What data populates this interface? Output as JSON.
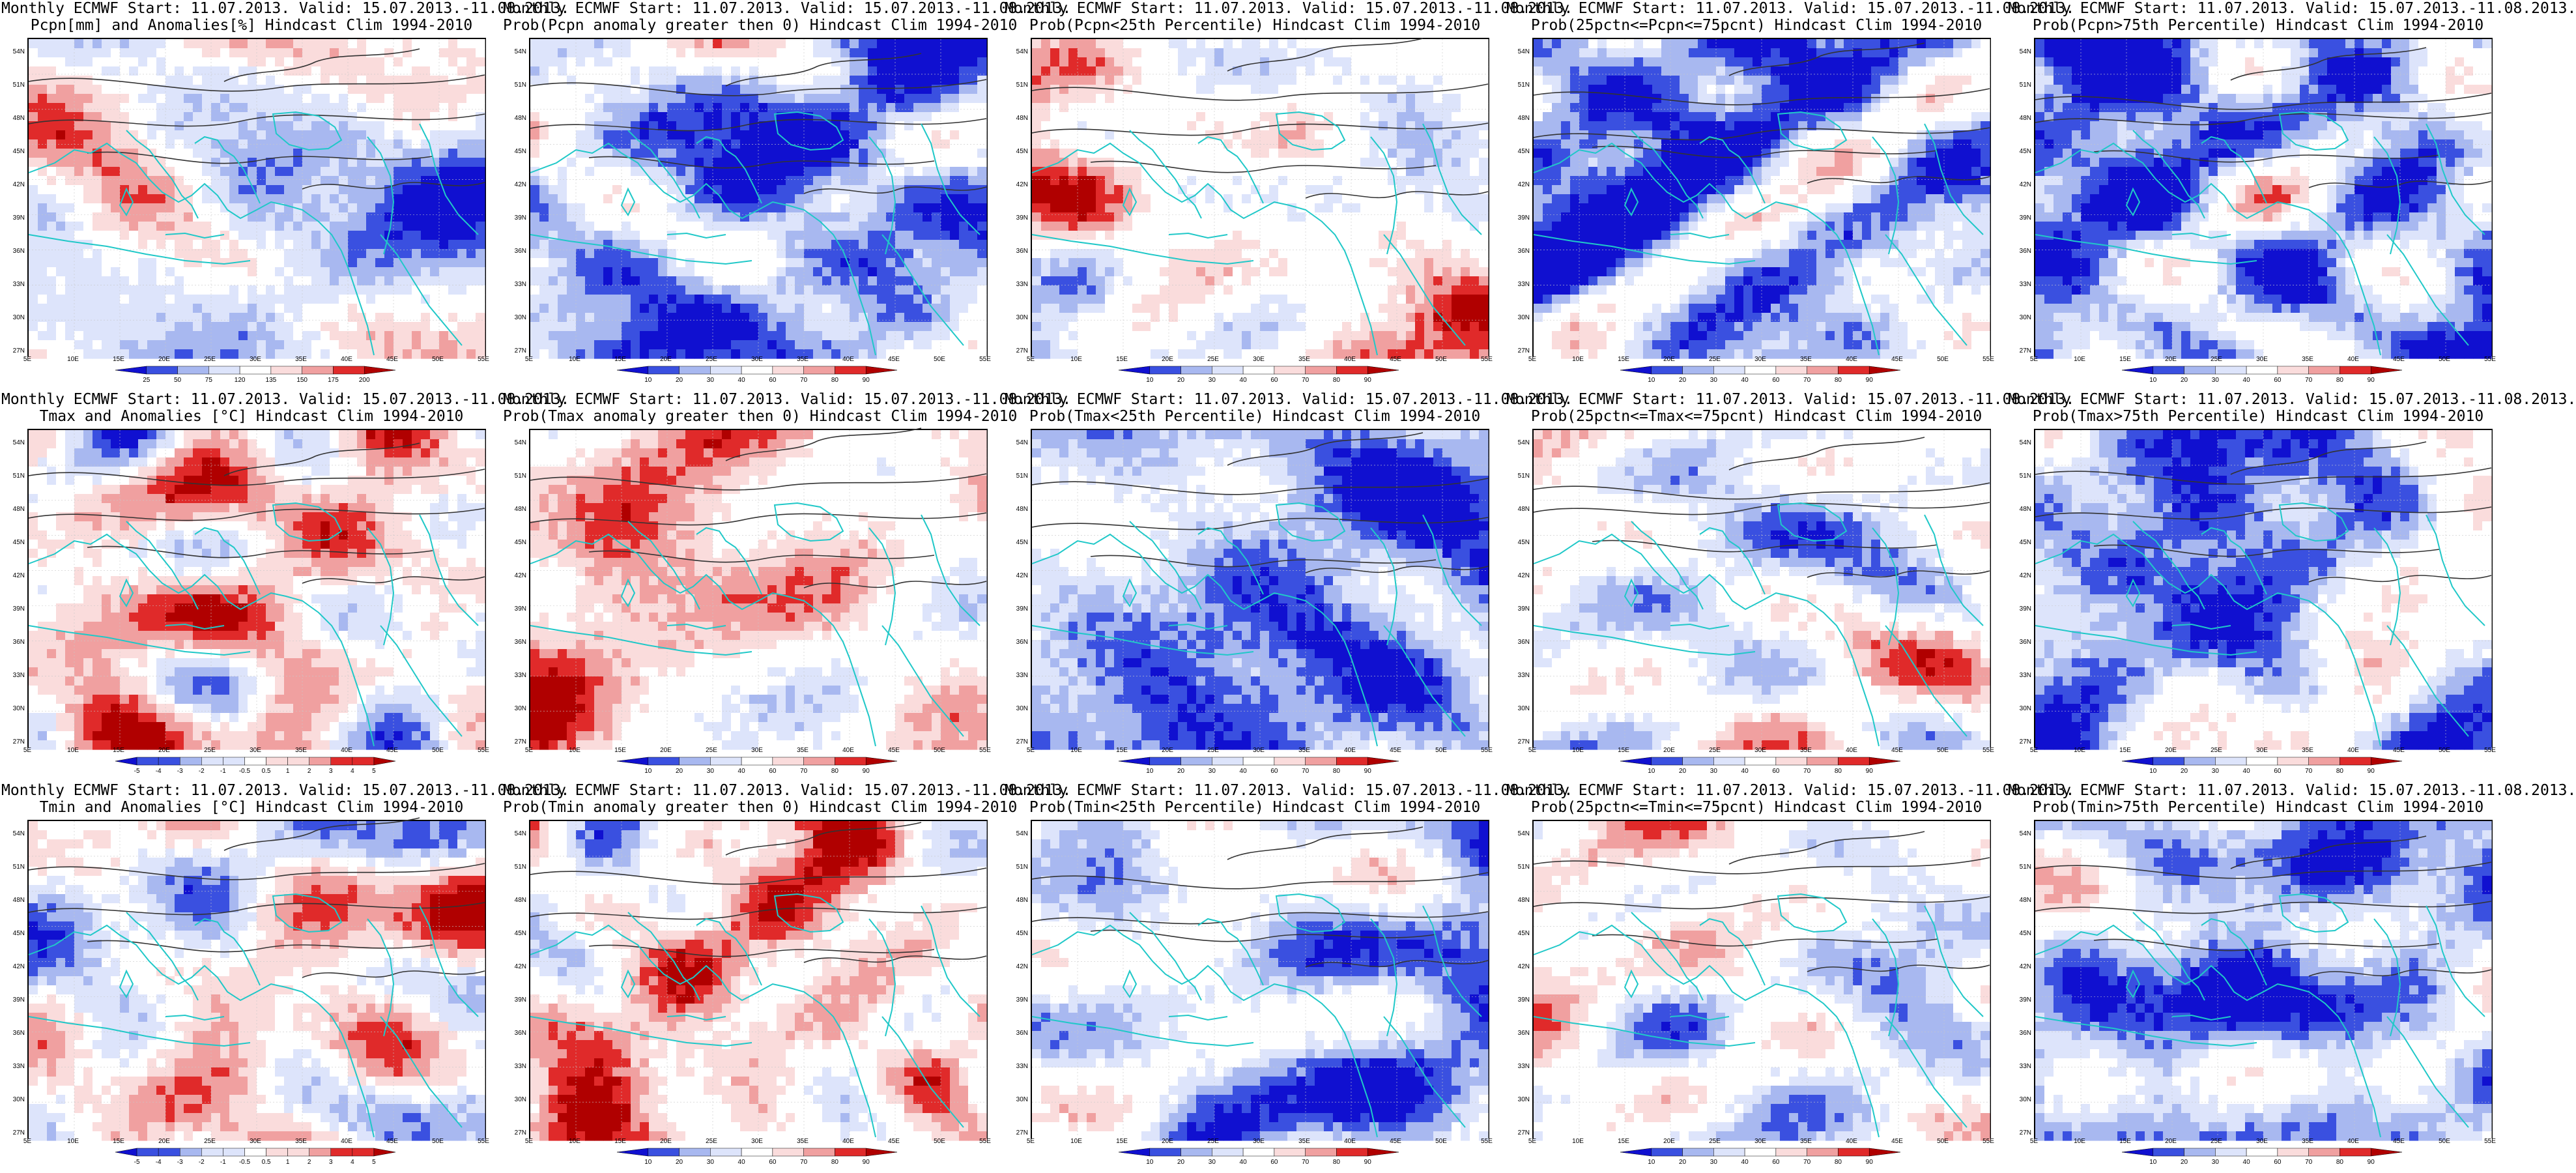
{
  "figure": {
    "panels": [
      {
        "title1": "Monthly ECMWF Start: 11.07.2013. Valid: 15.07.2013.-11.08.2013.",
        "title2": "Pcpn[mm] and Anomalies[%] Hindcast Clim 1994-2010",
        "colorbar": [
          "25",
          "50",
          "75",
          "120",
          "135",
          "150",
          "175",
          "200"
        ],
        "scheme": "anomaly"
      },
      {
        "title1": "Monthly ECMWF Start: 11.07.2013. Valid: 15.07.2013.-11.08.2013.",
        "title2": "Prob(Pcpn anomaly greater then 0) Hindcast Clim 1994-2010",
        "colorbar": [
          "10",
          "20",
          "30",
          "40",
          "60",
          "70",
          "80",
          "90"
        ],
        "scheme": "prob"
      },
      {
        "title1": "Monthly ECMWF Start: 11.07.2013. Valid: 15.07.2013.-11.08.2013.",
        "title2": "Prob(Pcpn<25th Percentile) Hindcast Clim 1994-2010",
        "colorbar": [
          "10",
          "20",
          "30",
          "40",
          "60",
          "70",
          "80",
          "90"
        ],
        "scheme": "prob"
      },
      {
        "title1": "Monthly ECMWF Start: 11.07.2013. Valid: 15.07.2013.-11.08.2013.",
        "title2": "Prob(25pctn<=Pcpn<=75pcnt) Hindcast Clim 1994-2010",
        "colorbar": [
          "10",
          "20",
          "30",
          "40",
          "60",
          "70",
          "80",
          "90"
        ],
        "scheme": "prob"
      },
      {
        "title1": "Monthly ECMWF Start: 11.07.2013. Valid: 15.07.2013.-11.08.2013.",
        "title2": "Prob(Pcpn>75th Percentile) Hindcast Clim 1994-2010",
        "colorbar": [
          "10",
          "20",
          "30",
          "40",
          "60",
          "70",
          "80",
          "90"
        ],
        "scheme": "prob"
      },
      {
        "title1": "Monthly ECMWF Start: 11.07.2013. Valid: 15.07.2013.-11.08.2013.",
        "title2": "Tmax and Anomalies [°C] Hindcast Clim 1994-2010",
        "colorbar": [
          "-5",
          "-4",
          "-3",
          "-2",
          "-1",
          "-0.5",
          "0.5",
          "1",
          "2",
          "3",
          "4",
          "5"
        ],
        "scheme": "anomaly"
      },
      {
        "title1": "Monthly ECMWF Start: 11.07.2013. Valid: 15.07.2013.-11.08.2013.",
        "title2": "Prob(Tmax anomaly greater then 0) Hindcast Clim 1994-2010",
        "colorbar": [
          "10",
          "20",
          "30",
          "40",
          "60",
          "70",
          "80",
          "90"
        ],
        "scheme": "prob"
      },
      {
        "title1": "Monthly ECMWF Start: 11.07.2013. Valid: 15.07.2013.-11.08.2013.",
        "title2": "Prob(Tmax<25th Percentile) Hindcast Clim 1994-2010",
        "colorbar": [
          "10",
          "20",
          "30",
          "40",
          "60",
          "70",
          "80",
          "90"
        ],
        "scheme": "prob"
      },
      {
        "title1": "Monthly ECMWF Start: 11.07.2013. Valid: 15.07.2013.-11.08.2013.",
        "title2": "Prob(25pctn<=Tmax<=75pcnt) Hindcast Clim 1994-2010",
        "colorbar": [
          "10",
          "20",
          "30",
          "40",
          "60",
          "70",
          "80",
          "90"
        ],
        "scheme": "prob"
      },
      {
        "title1": "Monthly ECMWF Start: 11.07.2013. Valid: 15.07.2013.-11.08.2013.",
        "title2": "Prob(Tmax>75th Percentile) Hindcast Clim 1994-2010",
        "colorbar": [
          "10",
          "20",
          "30",
          "40",
          "60",
          "70",
          "80",
          "90"
        ],
        "scheme": "prob"
      },
      {
        "title1": "Monthly ECMWF Start: 11.07.2013. Valid: 15.07.2013.-11.08.2013.",
        "title2": "Tmin and Anomalies [°C] Hindcast Clim 1994-2010",
        "colorbar": [
          "-5",
          "-4",
          "-3",
          "-2",
          "-1",
          "-0.5",
          "0.5",
          "1",
          "2",
          "3",
          "4",
          "5"
        ],
        "scheme": "anomaly"
      },
      {
        "title1": "Monthly ECMWF Start: 11.07.2013. Valid: 15.07.2013.-11.08.2013.",
        "title2": "Prob(Tmin anomaly greater then 0) Hindcast Clim 1994-2010",
        "colorbar": [
          "10",
          "20",
          "30",
          "40",
          "60",
          "70",
          "80",
          "90"
        ],
        "scheme": "prob"
      },
      {
        "title1": "Monthly ECMWF Start: 11.07.2013. Valid: 15.07.2013.-11.08.2013.",
        "title2": "Prob(Tmin<25th Percentile) Hindcast Clim 1994-2010",
        "colorbar": [
          "10",
          "20",
          "30",
          "40",
          "60",
          "70",
          "80",
          "90"
        ],
        "scheme": "prob"
      },
      {
        "title1": "Monthly ECMWF Start: 11.07.2013. Valid: 15.07.2013.-11.08.2013.",
        "title2": "Prob(25pctn<=Tmin<=75pcnt) Hindcast Clim 1994-2010",
        "colorbar": [
          "10",
          "20",
          "30",
          "40",
          "60",
          "70",
          "80",
          "90"
        ],
        "scheme": "prob"
      },
      {
        "title1": "Monthly ECMWF Start: 11.07.2013. Valid: 15.07.2013.-11.08.2013.",
        "title2": "Prob(Tmin>75th Percentile) Hindcast Clim 1994-2010",
        "colorbar": [
          "10",
          "20",
          "30",
          "40",
          "60",
          "70",
          "80",
          "90"
        ],
        "scheme": "prob"
      }
    ],
    "lat_labels": [
      "54N",
      "51N",
      "48N",
      "45N",
      "42N",
      "39N",
      "36N",
      "33N",
      "30N",
      "27N"
    ],
    "lon_labels": [
      "5E",
      "10E",
      "15E",
      "20E",
      "25E",
      "30E",
      "35E",
      "40E",
      "45E",
      "50E",
      "55E"
    ],
    "colors": {
      "deep_blue": "#1010d0",
      "blue": "#3a50e0",
      "light_blue": "#a8b8f0",
      "pale_blue": "#dde4fb",
      "pale_red": "#fadcdc",
      "light_red": "#f0a0a0",
      "red": "#e02a2a",
      "deep_red": "#b00000",
      "coast": "#20c8c8",
      "contour": "#333333"
    }
  }
}
